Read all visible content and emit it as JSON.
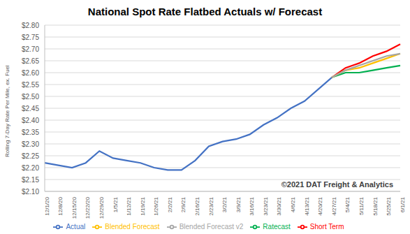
{
  "chart_data": {
    "type": "line",
    "title": "National Spot Rate Flatbed Actuals w/ Forecast",
    "y_label": "Rolling 7-Day Rate Per Mile, ex. Fuel",
    "annotation": "©2021 DAT Freight & Analytics",
    "categories": [
      "12/1/20",
      "12/8/20",
      "12/15/20",
      "12/22/20",
      "12/29/20",
      "1/5/21",
      "1/12/21",
      "1/19/21",
      "1/26/21",
      "2/2/21",
      "2/9/21",
      "2/16/21",
      "2/23/21",
      "3/2/21",
      "3/9/21",
      "3/16/21",
      "3/23/21",
      "3/30/21",
      "4/6/21",
      "4/13/21",
      "4/20/21",
      "4/27/21",
      "5/4/21",
      "5/11/21",
      "5/18/21",
      "5/25/21",
      "6/1/21"
    ],
    "series": [
      {
        "name": "Actual",
        "color": "#4472c4",
        "values": [
          2.22,
          2.21,
          2.2,
          2.22,
          2.27,
          2.24,
          2.23,
          2.22,
          2.2,
          2.19,
          2.19,
          2.23,
          2.29,
          2.31,
          2.32,
          2.34,
          2.38,
          2.41,
          2.45,
          2.48,
          2.53,
          2.58,
          null,
          null,
          null,
          null,
          null
        ]
      },
      {
        "name": "Short Term",
        "color": "#ff0000",
        "values": [
          null,
          null,
          null,
          null,
          null,
          null,
          null,
          null,
          null,
          null,
          null,
          null,
          null,
          null,
          null,
          null,
          null,
          null,
          null,
          null,
          null,
          2.58,
          2.62,
          2.64,
          2.67,
          2.69,
          2.72
        ]
      },
      {
        "name": "Ratecast",
        "color": "#00b050",
        "values": [
          null,
          null,
          null,
          null,
          null,
          null,
          null,
          null,
          null,
          null,
          null,
          null,
          null,
          null,
          null,
          null,
          null,
          null,
          null,
          null,
          null,
          2.58,
          2.6,
          2.6,
          2.61,
          2.62,
          2.63
        ]
      },
      {
        "name": "Blended Forecast",
        "color": "#ffc000",
        "values": [
          null,
          null,
          null,
          null,
          null,
          null,
          null,
          null,
          null,
          null,
          null,
          null,
          null,
          null,
          null,
          null,
          null,
          null,
          null,
          null,
          null,
          2.58,
          2.61,
          2.62,
          2.64,
          2.66,
          2.68
        ]
      },
      {
        "name": "Blended Forecast v2",
        "color": "#a5a5a5",
        "values": [
          null,
          null,
          null,
          null,
          null,
          null,
          null,
          null,
          null,
          null,
          null,
          null,
          null,
          null,
          null,
          null,
          null,
          null,
          null,
          null,
          null,
          2.58,
          2.61,
          2.63,
          2.65,
          2.67,
          2.68
        ]
      }
    ],
    "ylim": [
      2.1,
      2.8
    ],
    "yticks": [
      {
        "value": 2.1,
        "label": "$2.10"
      },
      {
        "value": 2.15,
        "label": "$2.15"
      },
      {
        "value": 2.2,
        "label": "$2.20"
      },
      {
        "value": 2.25,
        "label": "$2.25"
      },
      {
        "value": 2.3,
        "label": "$2.30"
      },
      {
        "value": 2.35,
        "label": "$2.35"
      },
      {
        "value": 2.4,
        "label": "$2.40"
      },
      {
        "value": 2.45,
        "label": "$2.45"
      },
      {
        "value": 2.5,
        "label": "$2.50"
      },
      {
        "value": 2.55,
        "label": "$2.55"
      },
      {
        "value": 2.6,
        "label": "$2.60"
      },
      {
        "value": 2.65,
        "label": "$2.65"
      },
      {
        "value": 2.7,
        "label": "$2.70"
      },
      {
        "value": 2.75,
        "label": "$2.75"
      },
      {
        "value": 2.8,
        "label": "$2.80"
      }
    ],
    "grid": true,
    "legend": "bottom"
  }
}
